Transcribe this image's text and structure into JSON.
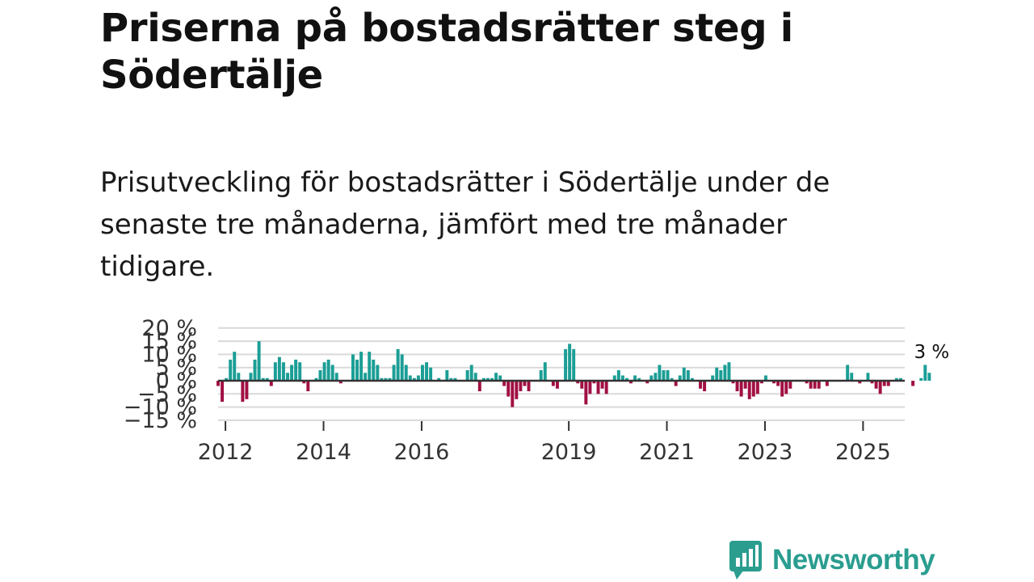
{
  "title": "Priserna på bostadsrätter steg i Södertälje",
  "subtitle": "Prisutveckling för bostadsrätter i Södertälje under de senaste tre månaderna, jämfört med tre månader tidigare.",
  "brand": {
    "name": "Newsworthy",
    "color": "#2a9d8f"
  },
  "colors": {
    "positive": "#1b9e96",
    "negative": "#a10f43",
    "zero_line": "#333333",
    "grid": "#d9d9d9"
  },
  "chart_data": {
    "type": "bar",
    "title": "Prisutveckling för bostadsrätter i Södertälje",
    "xlabel": "",
    "ylabel": "",
    "unit": "%",
    "ylim": [
      -15,
      20
    ],
    "yticks": [
      -15,
      -10,
      -5,
      0,
      5,
      10,
      15,
      20
    ],
    "ytick_labels": [
      "−15 %",
      "−10 %",
      "−5 %",
      "0 %",
      "5 %",
      "10 %",
      "15 %",
      "20 %"
    ],
    "xticks": [
      2012,
      2014,
      2016,
      2019,
      2021,
      2023,
      2025
    ],
    "xtick_labels": [
      "2012",
      "2014",
      "2016",
      "2019",
      "2021",
      "2023",
      "2025"
    ],
    "x_start": 2011.85,
    "x_end": 2025.85,
    "step_months": 1,
    "values": [
      -2,
      -8,
      1,
      8,
      11,
      3,
      -8,
      -7,
      3,
      8,
      15,
      1,
      1,
      -2,
      7,
      9,
      7,
      3,
      6,
      8,
      7,
      -1,
      -4,
      0,
      1,
      4,
      7,
      8,
      6,
      3,
      -1,
      0,
      0,
      10,
      8,
      11,
      3,
      11,
      8,
      6,
      1,
      1,
      1,
      6,
      12,
      10,
      6,
      2,
      1,
      2,
      6,
      7,
      5,
      0,
      1,
      0,
      4,
      1,
      1,
      0,
      0,
      4,
      6,
      3,
      -4,
      1,
      1,
      1,
      3,
      2,
      -2,
      -6,
      -10,
      -7,
      -4,
      -2,
      -4,
      0,
      0,
      4,
      7,
      0,
      -2,
      -3,
      0,
      12,
      14,
      12,
      -1,
      -3,
      -9,
      -5,
      -1,
      -5,
      -3,
      -5,
      0,
      2,
      4,
      2,
      1,
      -1,
      2,
      1,
      0,
      -1,
      2,
      3,
      6,
      4,
      4,
      1,
      -2,
      2,
      5,
      4,
      1,
      0,
      -3,
      -4,
      0,
      2,
      5,
      4,
      6,
      7,
      -1,
      -4,
      -6,
      -3,
      -7,
      -6,
      -5,
      -1,
      2,
      0,
      -1,
      -2,
      -6,
      -5,
      -3,
      0,
      0,
      0,
      -1,
      -3,
      -3,
      -3,
      0,
      -2,
      0,
      0,
      0,
      0,
      6,
      3,
      0,
      -1,
      0,
      3,
      -1,
      -3,
      -5,
      -2,
      -2,
      0,
      1,
      1,
      0,
      0,
      -2,
      0,
      1,
      6,
      3
    ],
    "end_annotation": "3 %"
  }
}
